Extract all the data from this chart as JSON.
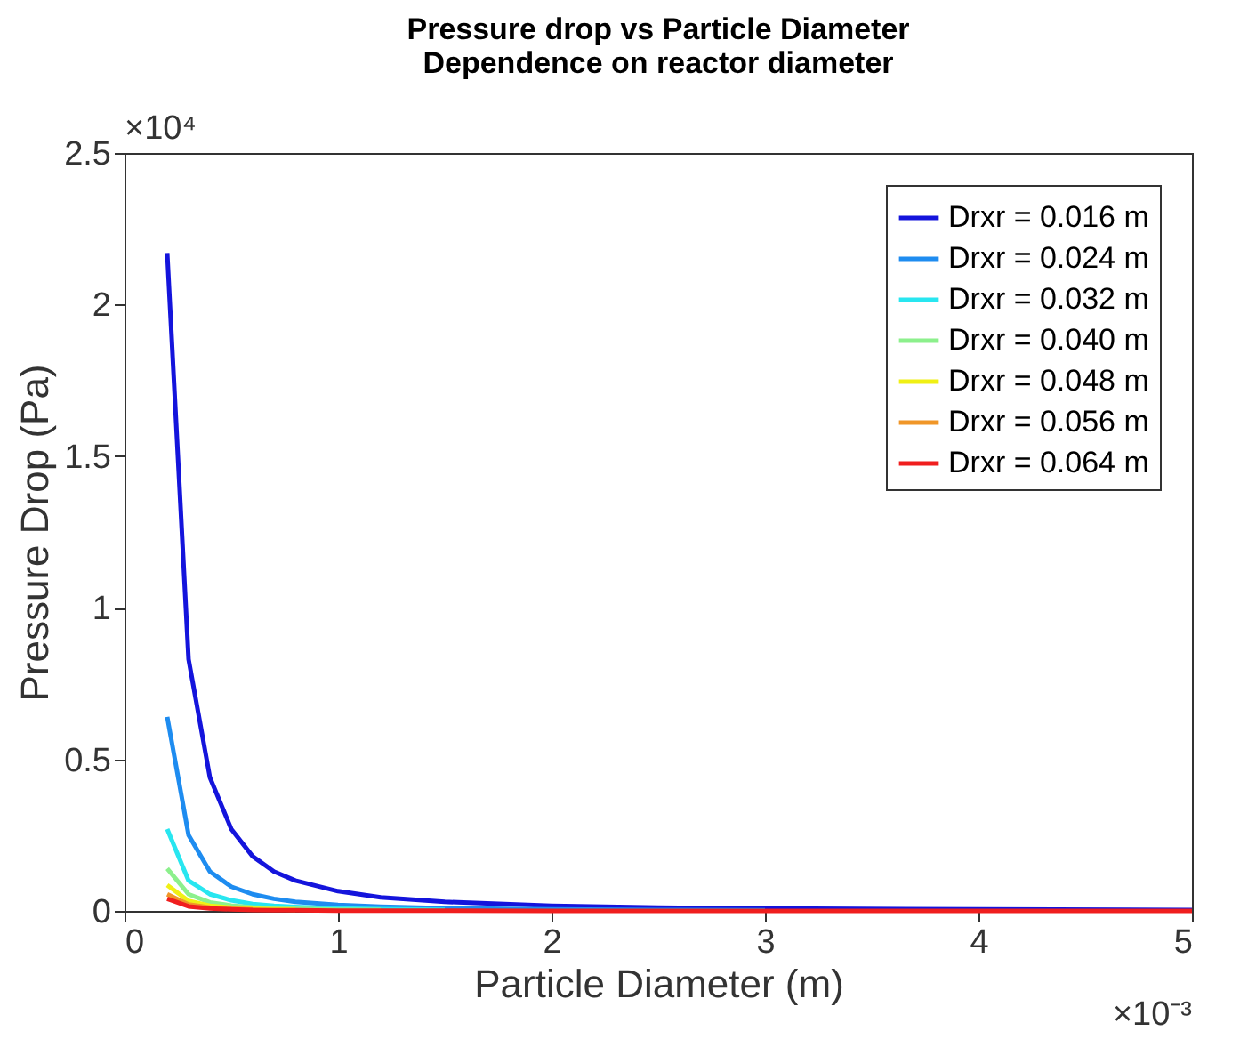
{
  "chart_data": {
    "type": "line",
    "title": "Pressure drop vs Particle Diameter",
    "subtitle": "Dependence on reactor diameter",
    "xlabel": "Particle Diameter (m)",
    "ylabel": "Pressure Drop (Pa)",
    "x": [
      0.2,
      0.3,
      0.4,
      0.5,
      0.6,
      0.7,
      0.8,
      1.0,
      1.2,
      1.5,
      2.0,
      2.5,
      3.0,
      4.0,
      5.0
    ],
    "series": [
      {
        "name": "Drxr = 0.016 m",
        "color": "#1414dc",
        "values": [
          2.17,
          0.83,
          0.44,
          0.27,
          0.18,
          0.13,
          0.1,
          0.065,
          0.045,
          0.03,
          0.017,
          0.011,
          0.008,
          0.005,
          0.003
        ]
      },
      {
        "name": "Drxr = 0.024 m",
        "color": "#1e8cf0",
        "values": [
          0.64,
          0.25,
          0.13,
          0.08,
          0.055,
          0.04,
          0.03,
          0.02,
          0.014,
          0.009,
          0.005,
          0.003,
          0.002,
          null,
          null
        ]
      },
      {
        "name": "Drxr = 0.032 m",
        "color": "#28e6f0",
        "values": [
          0.27,
          0.1,
          0.055,
          0.035,
          0.023,
          0.017,
          0.013,
          0.008,
          0.006,
          0.004,
          null,
          null,
          null,
          null,
          null
        ]
      },
      {
        "name": "Drxr = 0.040 m",
        "color": "#8cf08c",
        "values": [
          0.14,
          0.055,
          0.028,
          0.018,
          0.012,
          0.009,
          0.007,
          0.004,
          0.003,
          null,
          null,
          null,
          null,
          null,
          null
        ]
      },
      {
        "name": "Drxr = 0.048 m",
        "color": "#f0f014",
        "values": [
          0.085,
          0.033,
          0.017,
          0.011,
          0.007,
          0.005,
          0.004,
          null,
          null,
          null,
          null,
          null,
          null,
          null,
          null
        ]
      },
      {
        "name": "Drxr = 0.056 m",
        "color": "#f09628",
        "values": [
          0.055,
          0.021,
          0.011,
          0.007,
          0.005,
          null,
          null,
          null,
          null,
          null,
          null,
          null,
          null,
          null,
          null
        ]
      },
      {
        "name": "Drxr = 0.064 m",
        "color": "#f01e1e",
        "values": [
          0.04,
          0.015,
          0.008,
          0.005,
          0.003,
          0.002,
          0.002,
          0.001,
          0.001,
          0.001,
          0.0,
          0.0,
          0.0,
          0.0,
          0.0
        ]
      }
    ],
    "xlim": [
      0,
      5
    ],
    "xticks": [
      0,
      1,
      2,
      3,
      4,
      5
    ],
    "ylim": [
      0,
      2.5
    ],
    "yticks": [
      0,
      0.5,
      1,
      1.5,
      2,
      2.5
    ],
    "annotations": [
      "×10⁴",
      "×10⁻³"
    ],
    "grid": false,
    "legend": "top right",
    "marker": "none",
    "line_style": "solid"
  }
}
